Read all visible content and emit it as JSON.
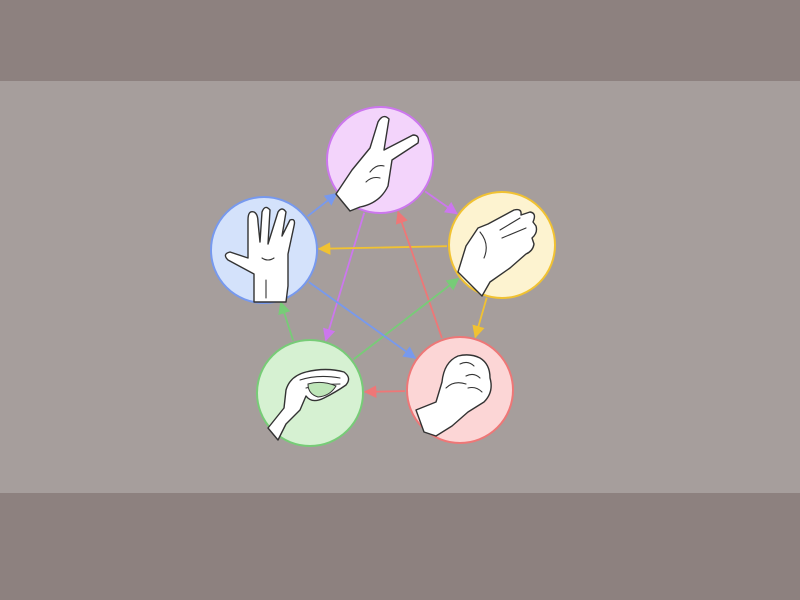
{
  "diagram": {
    "type": "rock-paper-scissors-lizard-spock cycle",
    "nodes": [
      {
        "id": "scissors",
        "icon": "scissors-hand-icon",
        "fill": "#f3d4fb",
        "stroke": "#cc77ee"
      },
      {
        "id": "paper",
        "icon": "paper-hand-icon",
        "fill": "#fdf3d0",
        "stroke": "#f1c232"
      },
      {
        "id": "rock",
        "icon": "rock-fist-icon",
        "fill": "#fcd6d6",
        "stroke": "#ee7777"
      },
      {
        "id": "lizard",
        "icon": "lizard-hand-icon",
        "fill": "#d6f1d2",
        "stroke": "#77cc77"
      },
      {
        "id": "spock",
        "icon": "spock-hand-icon",
        "fill": "#d4e2fb",
        "stroke": "#7799ee"
      }
    ],
    "edges": [
      {
        "from": "scissors",
        "to": "paper",
        "color": "#cc77ee"
      },
      {
        "from": "scissors",
        "to": "lizard",
        "color": "#cc77ee"
      },
      {
        "from": "paper",
        "to": "rock",
        "color": "#f1c232"
      },
      {
        "from": "paper",
        "to": "spock",
        "color": "#f1c232"
      },
      {
        "from": "rock",
        "to": "lizard",
        "color": "#ee7777"
      },
      {
        "from": "rock",
        "to": "scissors",
        "color": "#ee7777"
      },
      {
        "from": "lizard",
        "to": "spock",
        "color": "#77cc77"
      },
      {
        "from": "lizard",
        "to": "paper",
        "color": "#77cc77"
      },
      {
        "from": "spock",
        "to": "scissors",
        "color": "#7799ee"
      },
      {
        "from": "spock",
        "to": "rock",
        "color": "#7799ee"
      }
    ]
  }
}
